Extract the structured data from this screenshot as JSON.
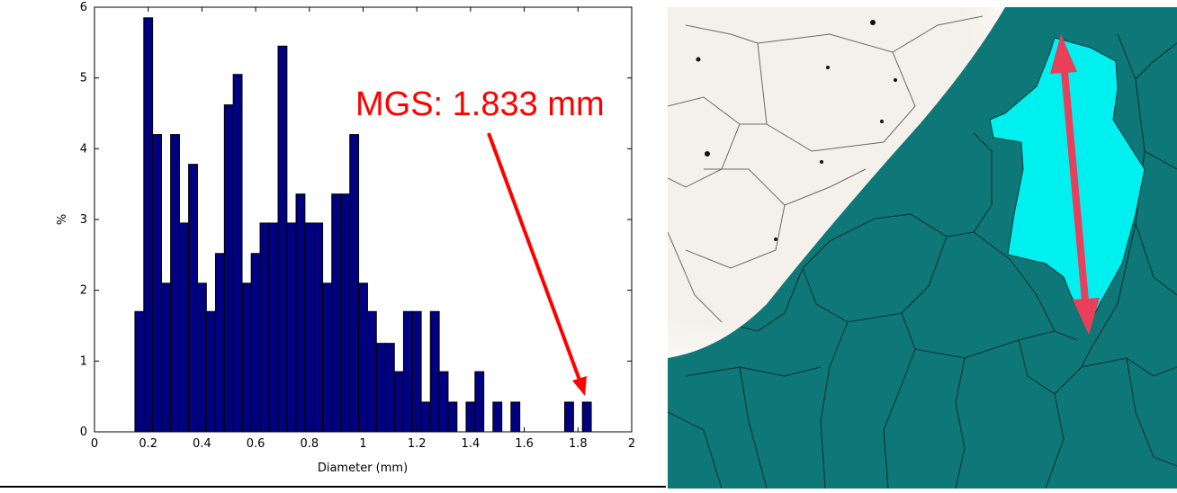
{
  "chart_data": {
    "type": "bar",
    "title": "",
    "xlabel": "Diameter (mm)",
    "ylabel": "%",
    "xlim": [
      0,
      2
    ],
    "ylim": [
      0,
      6
    ],
    "xticks": [
      "0",
      "0.2",
      "0.4",
      "0.6",
      "0.8",
      "1",
      "1.2",
      "1.4",
      "1.6",
      "1.8",
      "2"
    ],
    "yticks": [
      "0",
      "1",
      "2",
      "3",
      "4",
      "5",
      "6"
    ],
    "grid": false,
    "bar_color": "#000080",
    "bin_width": 0.033,
    "x": [
      0.167,
      0.2,
      0.233,
      0.267,
      0.3,
      0.333,
      0.367,
      0.4,
      0.433,
      0.467,
      0.5,
      0.533,
      0.567,
      0.6,
      0.633,
      0.667,
      0.7,
      0.733,
      0.767,
      0.8,
      0.833,
      0.867,
      0.9,
      0.933,
      0.967,
      1.0,
      1.033,
      1.067,
      1.1,
      1.133,
      1.167,
      1.2,
      1.233,
      1.267,
      1.3,
      1.333,
      1.367,
      1.4,
      1.433,
      1.467,
      1.5,
      1.533,
      1.567,
      1.6,
      1.633,
      1.667,
      1.7,
      1.733,
      1.767,
      1.8,
      1.833
    ],
    "values": [
      1.7,
      5.85,
      4.2,
      2.1,
      4.2,
      2.95,
      3.78,
      2.1,
      1.7,
      2.52,
      4.62,
      5.05,
      2.1,
      2.52,
      2.95,
      2.95,
      5.45,
      2.95,
      3.36,
      2.95,
      2.95,
      2.1,
      3.36,
      3.36,
      4.2,
      2.1,
      1.7,
      1.25,
      1.25,
      0.85,
      1.7,
      1.7,
      0.42,
      1.7,
      0.85,
      0.42,
      0,
      0.42,
      0.85,
      0,
      0.42,
      0,
      0.42,
      0,
      0,
      0,
      0,
      0,
      0.42,
      0,
      0.42
    ],
    "annotations": [
      {
        "text": "MGS: 1.833 mm",
        "color": "#ff0000",
        "target_x": 1.833,
        "target_y": 0.45
      }
    ]
  },
  "micrograph": {
    "highlight_color": "#00f0f0",
    "phase_color": "#0e7777",
    "arrow_color": "#e8405a"
  }
}
